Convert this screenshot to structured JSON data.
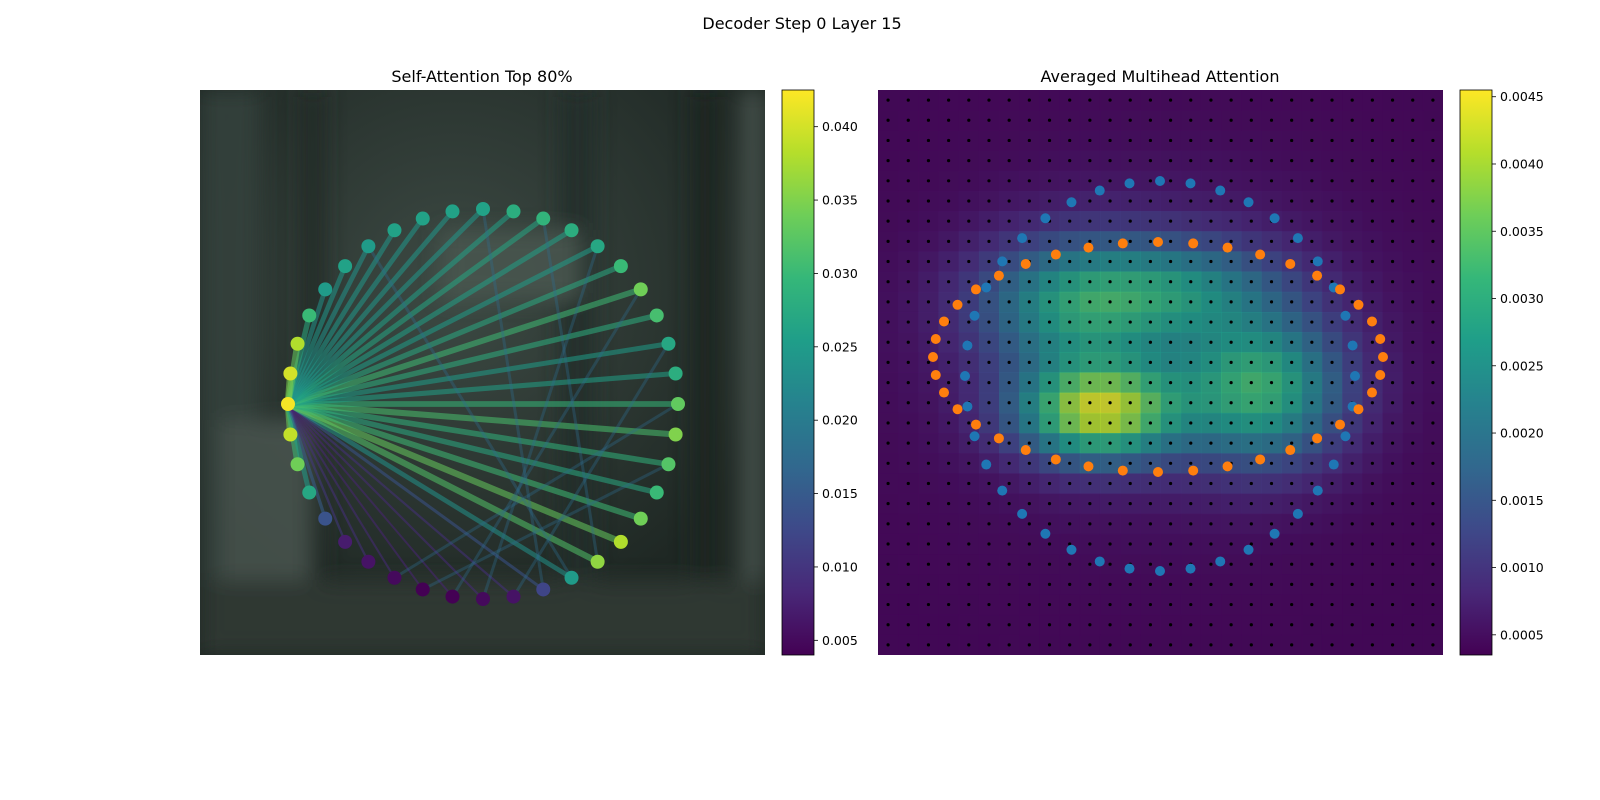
{
  "figure_title": "Decoder Step 0 Layer 15",
  "colors": {
    "viridis": [
      "#440154",
      "#482878",
      "#3e4989",
      "#31688e",
      "#26828e",
      "#1f9e89",
      "#35b779",
      "#6ece58",
      "#b5de2b",
      "#fde725"
    ],
    "ring_blue": "#1f77b4",
    "ring_orange": "#ff7f0e",
    "photo_background": "#2b3530",
    "heatmap_background": "#2e1f45"
  },
  "chart_data": [
    {
      "type": "scatter",
      "title": "Self-Attention Top 80%",
      "description_markers": "40 keypoints on a circle, colored by attention weight; edges from highlighted node (index 0) to others",
      "node_values": [
        0.042,
        0.039,
        0.034,
        0.027,
        0.014,
        0.007,
        0.006,
        0.005,
        0.004,
        0.004,
        0.005,
        0.006,
        0.012,
        0.025,
        0.036,
        0.038,
        0.034,
        0.03,
        0.032,
        0.035,
        0.033,
        0.028,
        0.027,
        0.031,
        0.034,
        0.03,
        0.027,
        0.028,
        0.029,
        0.028,
        0.026,
        0.026,
        0.026,
        0.026,
        0.025,
        0.026,
        0.025,
        0.03,
        0.038,
        0.04
      ],
      "source_node": 0,
      "colorbar": {
        "min": 0.004,
        "max": 0.0425,
        "ticks": [
          0.005,
          0.01,
          0.015,
          0.02,
          0.025,
          0.03,
          0.035,
          0.04
        ],
        "tick_labels": [
          "0.005",
          "0.010",
          "0.015",
          "0.020",
          "0.025",
          "0.030",
          "0.035",
          "0.040"
        ]
      }
    },
    {
      "type": "heatmap",
      "title": "Averaged Multihead Attention",
      "grid_cells": 28,
      "hotspots": [
        {
          "cx": 0.39,
          "cy": 0.57,
          "amplitude": 0.0034,
          "sx": 0.1,
          "sy": 0.06
        },
        {
          "cx": 0.68,
          "cy": 0.53,
          "amplitude": 0.0024,
          "sx": 0.1,
          "sy": 0.09
        },
        {
          "cx": 0.35,
          "cy": 0.38,
          "amplitude": 0.002,
          "sx": 0.12,
          "sy": 0.08
        },
        {
          "cx": 0.55,
          "cy": 0.35,
          "amplitude": 0.0013,
          "sx": 0.12,
          "sy": 0.06
        }
      ],
      "baseline": 0.0004,
      "blue_ring_count": 40,
      "orange_ring_count": 40,
      "colorbar": {
        "min": 0.00035,
        "max": 0.00455,
        "ticks": [
          0.0005,
          0.001,
          0.0015,
          0.002,
          0.0025,
          0.003,
          0.0035,
          0.004,
          0.0045
        ],
        "tick_labels": [
          "0.0005",
          "0.0010",
          "0.0015",
          "0.0020",
          "0.0025",
          "0.0030",
          "0.0035",
          "0.0040",
          "0.0045"
        ]
      }
    }
  ]
}
